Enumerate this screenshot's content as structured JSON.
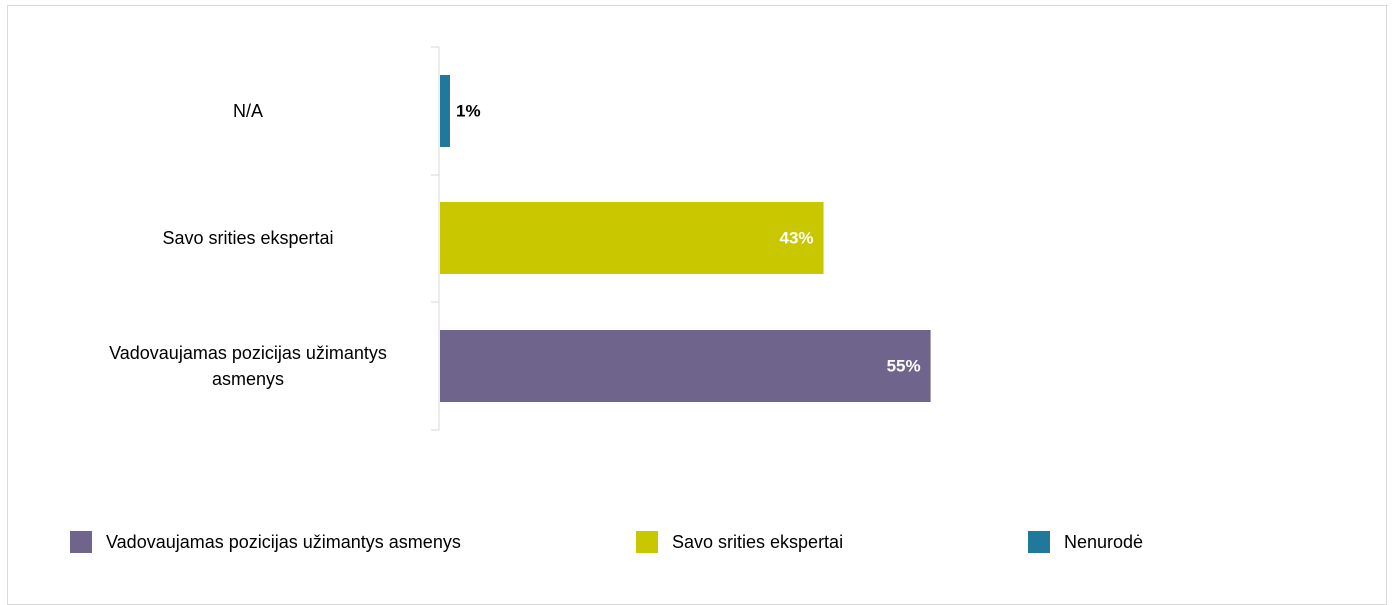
{
  "chart_data": {
    "type": "bar",
    "orientation": "horizontal",
    "categories": [
      "N/A",
      "Savo srities ekspertai",
      "Vadovaujamas pozicijas užimantys asmenys"
    ],
    "values": [
      1,
      43,
      55
    ],
    "data_labels": [
      "1%",
      "43%",
      "55%"
    ],
    "bar_colors": [
      "#21789a",
      "#c9c800",
      "#6f658c"
    ],
    "data_label_colors": [
      "#000000",
      "#ffffff",
      "#ffffff"
    ],
    "xlim": [
      0,
      100
    ],
    "grid": false,
    "legend_position": "bottom",
    "legend": [
      {
        "label": "Vadovaujamas pozicijas užimantys asmenys",
        "color": "#6f658c"
      },
      {
        "label": "Savo srities ekspertai",
        "color": "#c9c800"
      },
      {
        "label": "Nenurodė",
        "color": "#21789a"
      }
    ],
    "title": "",
    "xlabel": "",
    "ylabel": ""
  }
}
